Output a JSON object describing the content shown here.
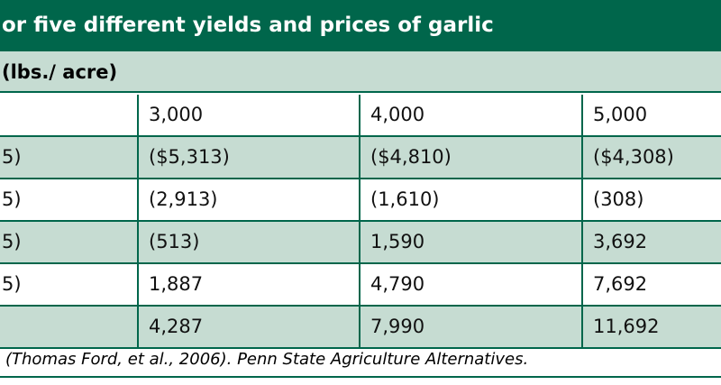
{
  "title": "or five different yields and prices of garlic",
  "subheader": "(lbs./ acre)",
  "table": {
    "rows": [
      {
        "cells": [
          "3,000",
          "4,000",
          "5,000"
        ]
      },
      {
        "label": "5)",
        "cells": [
          "($5,313)",
          "($4,810)",
          "($4,308)"
        ]
      },
      {
        "label": "5)",
        "cells": [
          "(2,913)",
          "(1,610)",
          "(308)"
        ]
      },
      {
        "label": "5)",
        "cells": [
          "(513)",
          "1,590",
          "3,692"
        ]
      },
      {
        "label": "5)",
        "cells": [
          "1,887",
          "4,790",
          "7,692"
        ]
      },
      {
        "cells": [
          "4,287",
          "7,990",
          "11,692"
        ]
      }
    ]
  },
  "source": "(Thomas Ford, et al., 2006). Penn State Agriculture Alternatives."
}
